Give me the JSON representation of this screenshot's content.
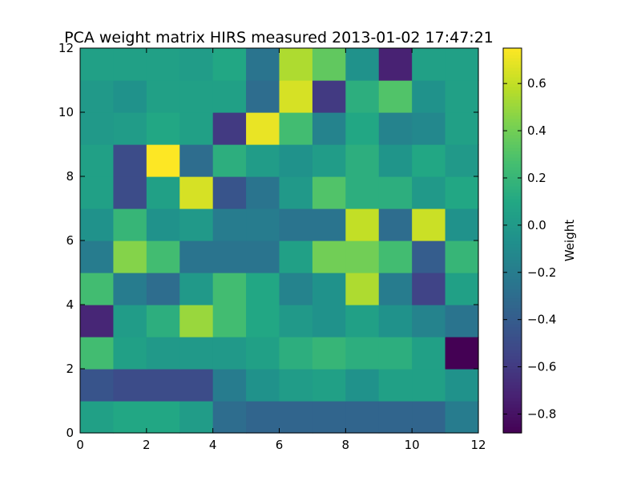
{
  "chart_data": {
    "type": "heatmap",
    "title": "PCA weight matrix HIRS measured 2013-01-02 17:47:21",
    "xlim": [
      0,
      12
    ],
    "ylim": [
      0,
      12
    ],
    "x_ticks": [
      "0",
      "2",
      "4",
      "6",
      "8",
      "10",
      "12"
    ],
    "y_ticks": [
      "0",
      "2",
      "4",
      "6",
      "8",
      "10",
      "12"
    ],
    "colorbar": {
      "label": "Weight",
      "range": [
        -0.88,
        0.75
      ],
      "ticks": [
        {
          "value": -0.8,
          "label": "−0.8"
        },
        {
          "value": -0.6,
          "label": "−0.6"
        },
        {
          "value": -0.4,
          "label": "−0.4"
        },
        {
          "value": -0.2,
          "label": "−0.2"
        },
        {
          "value": 0.0,
          "label": "0.0"
        },
        {
          "value": 0.2,
          "label": "0.2"
        },
        {
          "value": 0.4,
          "label": "0.4"
        },
        {
          "value": 0.6,
          "label": "0.6"
        }
      ],
      "colormap": "viridis"
    },
    "values_row_order": "rows listed from y=0 (bottom) to y=12 (top), each row x=0..11",
    "values": [
      [
        0.05,
        0.1,
        0.1,
        0.02,
        -0.3,
        -0.35,
        -0.35,
        -0.35,
        -0.35,
        -0.35,
        -0.35,
        -0.2
      ],
      [
        -0.45,
        -0.5,
        -0.5,
        -0.5,
        -0.2,
        -0.05,
        0.02,
        0.05,
        -0.05,
        0.05,
        0.05,
        -0.05
      ],
      [
        0.25,
        0.05,
        0.0,
        0.0,
        0.0,
        0.05,
        0.15,
        0.2,
        0.15,
        0.15,
        0.05,
        -0.88
      ],
      [
        -0.7,
        0.02,
        0.15,
        0.5,
        0.25,
        0.1,
        0.0,
        -0.05,
        0.05,
        -0.05,
        -0.15,
        -0.25
      ],
      [
        0.25,
        -0.2,
        -0.3,
        0.0,
        0.25,
        0.1,
        -0.15,
        -0.05,
        0.55,
        -0.2,
        -0.55,
        0.05
      ],
      [
        -0.2,
        0.45,
        0.25,
        -0.25,
        -0.25,
        -0.25,
        0.05,
        0.4,
        0.4,
        0.25,
        -0.4,
        0.2
      ],
      [
        -0.05,
        0.2,
        -0.05,
        0.0,
        -0.2,
        -0.2,
        -0.25,
        -0.25,
        0.6,
        -0.3,
        0.62,
        -0.05
      ],
      [
        0.05,
        -0.5,
        0.05,
        0.65,
        -0.45,
        -0.25,
        0.0,
        0.3,
        0.15,
        0.15,
        0.0,
        0.1
      ],
      [
        0.05,
        -0.5,
        0.75,
        -0.3,
        0.15,
        0.02,
        -0.05,
        0.02,
        0.15,
        -0.03,
        0.1,
        0.0
      ],
      [
        0.0,
        0.02,
        0.1,
        0.05,
        -0.6,
        0.7,
        0.25,
        -0.15,
        0.1,
        -0.15,
        -0.12,
        0.05
      ],
      [
        0.0,
        -0.05,
        0.05,
        0.05,
        0.05,
        -0.3,
        0.65,
        -0.6,
        0.15,
        0.3,
        -0.05,
        0.05
      ],
      [
        0.05,
        0.05,
        0.05,
        0.02,
        0.1,
        -0.25,
        0.55,
        0.35,
        -0.05,
        -0.72,
        0.05,
        0.05
      ]
    ]
  }
}
